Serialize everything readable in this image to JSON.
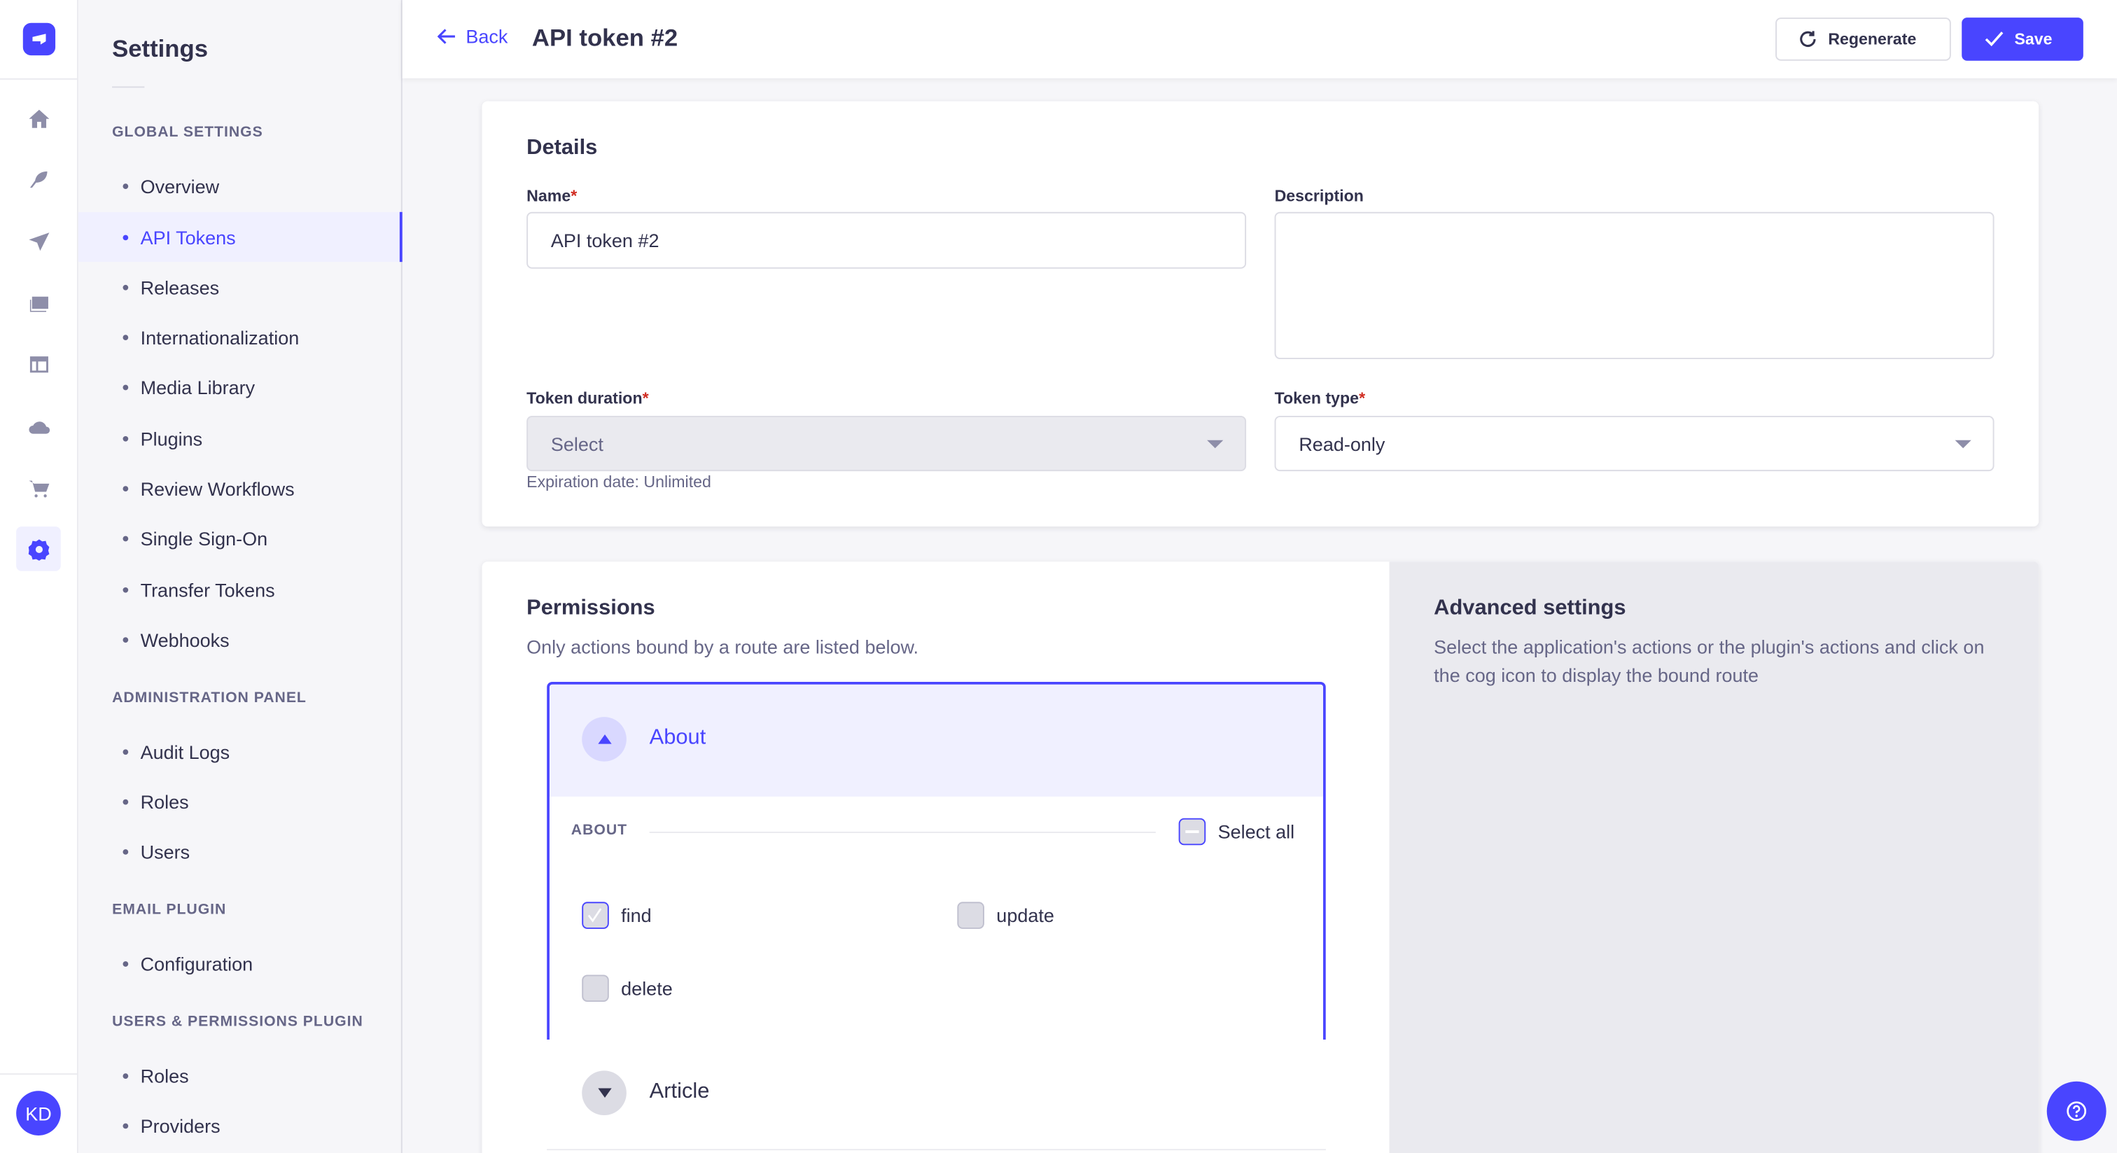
{
  "nav_rail": {
    "icons": [
      "home-icon",
      "content-manager-feather-icon",
      "paper-plane-icon",
      "media-library-icon",
      "layout-icon",
      "cloud-icon",
      "cart-icon",
      "gear-icon"
    ],
    "active": "gear-icon",
    "avatar_initials": "KD"
  },
  "subnav": {
    "title": "Settings",
    "sections": [
      {
        "title": "GLOBAL SETTINGS",
        "items": [
          "Overview",
          "API Tokens",
          "Releases",
          "Internationalization",
          "Media Library",
          "Plugins",
          "Review Workflows",
          "Single Sign-On",
          "Transfer Tokens",
          "Webhooks"
        ]
      },
      {
        "title": "ADMINISTRATION PANEL",
        "items": [
          "Audit Logs",
          "Roles",
          "Users"
        ]
      },
      {
        "title": "EMAIL PLUGIN",
        "items": [
          "Configuration"
        ]
      },
      {
        "title": "USERS & PERMISSIONS PLUGIN",
        "items": [
          "Roles",
          "Providers"
        ]
      }
    ],
    "active_item": "API Tokens"
  },
  "header": {
    "back_label": "Back",
    "title": "API token #2",
    "regenerate_label": "Regenerate",
    "save_label": "Save"
  },
  "details": {
    "heading": "Details",
    "name_label": "Name",
    "name_value": "API token #2",
    "description_label": "Description",
    "description_value": "",
    "duration_label": "Token duration",
    "duration_value": "Select",
    "expiration_hint": "Expiration date: Unlimited",
    "type_label": "Token type",
    "type_value": "Read-only",
    "required_mark": "*"
  },
  "permissions": {
    "heading": "Permissions",
    "subtitle": "Only actions bound by a route are listed below.",
    "accordions": [
      {
        "title": "About",
        "expanded": true,
        "section_label": "ABOUT",
        "select_all_label": "Select all",
        "select_all_state": "indeterminate",
        "actions": [
          {
            "label": "find",
            "checked": true
          },
          {
            "label": "update",
            "checked": false
          },
          {
            "label": "delete",
            "checked": false
          }
        ]
      },
      {
        "title": "Article",
        "expanded": false
      }
    ]
  },
  "advanced": {
    "heading": "Advanced settings",
    "text": "Select the application's actions or the plugin's actions and click on the cog icon to display the bound route"
  },
  "colors": {
    "primary": "#4945ff",
    "required": "#d02b20"
  }
}
